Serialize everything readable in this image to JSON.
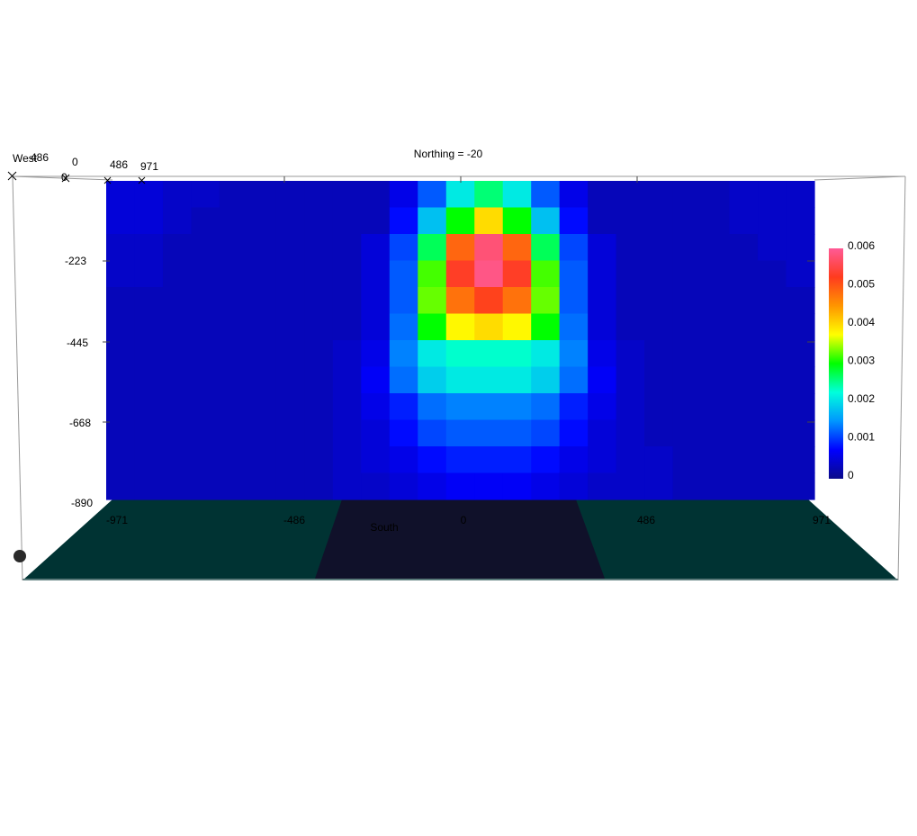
{
  "chart_data": {
    "type": "heatmap",
    "title": "Northing =  -20",
    "south_label": "South",
    "west_label": "West",
    "x_ticks": [
      "-971",
      "-486",
      "0",
      "486",
      "971"
    ],
    "y_ticks": [
      "-223",
      "-445",
      "-668",
      "-890"
    ],
    "top_axis_ticks": [
      "486",
      "0",
      "486",
      "971"
    ],
    "top_axis_zero": "0",
    "colorbar": {
      "min": 0,
      "max": 0.006,
      "ticks": [
        "0.006",
        "0.005",
        "0.004",
        "0.003",
        "0.002",
        "0.001",
        "0"
      ]
    },
    "grid_cols": 25,
    "grid_rows": 12,
    "values": [
      [
        0.0005,
        0.0005,
        0.0004,
        0.0004,
        0.0003,
        0.0003,
        0.0003,
        0.0003,
        0.0003,
        0.0003,
        0.0006,
        0.0012,
        0.0021,
        0.0026,
        0.0021,
        0.0012,
        0.0006,
        0.0003,
        0.0003,
        0.0003,
        0.0003,
        0.0003,
        0.0004,
        0.0004,
        0.0004
      ],
      [
        0.0005,
        0.0005,
        0.0004,
        0.0003,
        0.0003,
        0.0003,
        0.0003,
        0.0003,
        0.0003,
        0.0003,
        0.0008,
        0.0018,
        0.003,
        0.004,
        0.003,
        0.0018,
        0.0008,
        0.0003,
        0.0003,
        0.0003,
        0.0003,
        0.0003,
        0.0004,
        0.0004,
        0.0004
      ],
      [
        0.0004,
        0.0004,
        0.0003,
        0.0003,
        0.0003,
        0.0003,
        0.0003,
        0.0003,
        0.0003,
        0.0005,
        0.0011,
        0.0027,
        0.0049,
        0.0058,
        0.0049,
        0.0027,
        0.0011,
        0.0005,
        0.0003,
        0.0003,
        0.0003,
        0.0003,
        0.0003,
        0.0004,
        0.0004
      ],
      [
        0.0004,
        0.0004,
        0.0003,
        0.0003,
        0.0003,
        0.0003,
        0.0003,
        0.0003,
        0.0003,
        0.0005,
        0.0012,
        0.0032,
        0.0053,
        0.0059,
        0.0053,
        0.0032,
        0.0012,
        0.0005,
        0.0003,
        0.0003,
        0.0003,
        0.0003,
        0.0003,
        0.0003,
        0.0004
      ],
      [
        0.0003,
        0.0003,
        0.0003,
        0.0003,
        0.0003,
        0.0003,
        0.0003,
        0.0003,
        0.0003,
        0.0005,
        0.0012,
        0.0033,
        0.0048,
        0.0052,
        0.0048,
        0.0033,
        0.0012,
        0.0005,
        0.0003,
        0.0003,
        0.0003,
        0.0003,
        0.0003,
        0.0003,
        0.0003
      ],
      [
        0.0003,
        0.0003,
        0.0003,
        0.0003,
        0.0003,
        0.0003,
        0.0003,
        0.0003,
        0.0003,
        0.0005,
        0.0013,
        0.003,
        0.0038,
        0.004,
        0.0038,
        0.003,
        0.0013,
        0.0005,
        0.0003,
        0.0003,
        0.0003,
        0.0003,
        0.0003,
        0.0003,
        0.0003
      ],
      [
        0.0003,
        0.0003,
        0.0003,
        0.0003,
        0.0003,
        0.0003,
        0.0003,
        0.0003,
        0.0004,
        0.0006,
        0.0014,
        0.0021,
        0.0023,
        0.0023,
        0.0023,
        0.0021,
        0.0014,
        0.0006,
        0.0004,
        0.0003,
        0.0003,
        0.0003,
        0.0003,
        0.0003,
        0.0003
      ],
      [
        0.0003,
        0.0003,
        0.0003,
        0.0003,
        0.0003,
        0.0003,
        0.0003,
        0.0003,
        0.0004,
        0.0007,
        0.0013,
        0.0019,
        0.0021,
        0.0021,
        0.0021,
        0.0019,
        0.0013,
        0.0007,
        0.0004,
        0.0003,
        0.0003,
        0.0003,
        0.0003,
        0.0003,
        0.0003
      ],
      [
        0.0003,
        0.0003,
        0.0003,
        0.0003,
        0.0003,
        0.0003,
        0.0003,
        0.0003,
        0.0004,
        0.0006,
        0.0009,
        0.0013,
        0.0014,
        0.0014,
        0.0014,
        0.0013,
        0.0009,
        0.0006,
        0.0004,
        0.0003,
        0.0003,
        0.0003,
        0.0003,
        0.0003,
        0.0003
      ],
      [
        0.0003,
        0.0003,
        0.0003,
        0.0003,
        0.0003,
        0.0003,
        0.0003,
        0.0003,
        0.0004,
        0.0005,
        0.0008,
        0.0011,
        0.0012,
        0.0012,
        0.0012,
        0.0011,
        0.0008,
        0.0005,
        0.0004,
        0.0003,
        0.0003,
        0.0003,
        0.0003,
        0.0003,
        0.0003
      ],
      [
        0.0003,
        0.0003,
        0.0003,
        0.0003,
        0.0003,
        0.0003,
        0.0003,
        0.0003,
        0.0004,
        0.0005,
        0.0006,
        0.0008,
        0.0009,
        0.0009,
        0.0009,
        0.0008,
        0.0006,
        0.0005,
        0.0004,
        0.0004,
        0.0003,
        0.0003,
        0.0003,
        0.0003,
        0.0003
      ],
      [
        0.0003,
        0.0003,
        0.0003,
        0.0003,
        0.0003,
        0.0003,
        0.0003,
        0.0003,
        0.0004,
        0.0004,
        0.0005,
        0.0006,
        0.0007,
        0.0007,
        0.0007,
        0.0006,
        0.0005,
        0.0004,
        0.0004,
        0.0004,
        0.0003,
        0.0003,
        0.0003,
        0.0003,
        0.0003
      ]
    ]
  },
  "colors": {
    "ground": "#003333",
    "ground_center": "#10112a",
    "frame": "#999999",
    "colorscale": [
      "#0a0a8a",
      "#0000ff",
      "#0096ff",
      "#00ffdc",
      "#00ff00",
      "#ffff00",
      "#ff9600",
      "#ff3c1e",
      "#ff5a96"
    ]
  }
}
